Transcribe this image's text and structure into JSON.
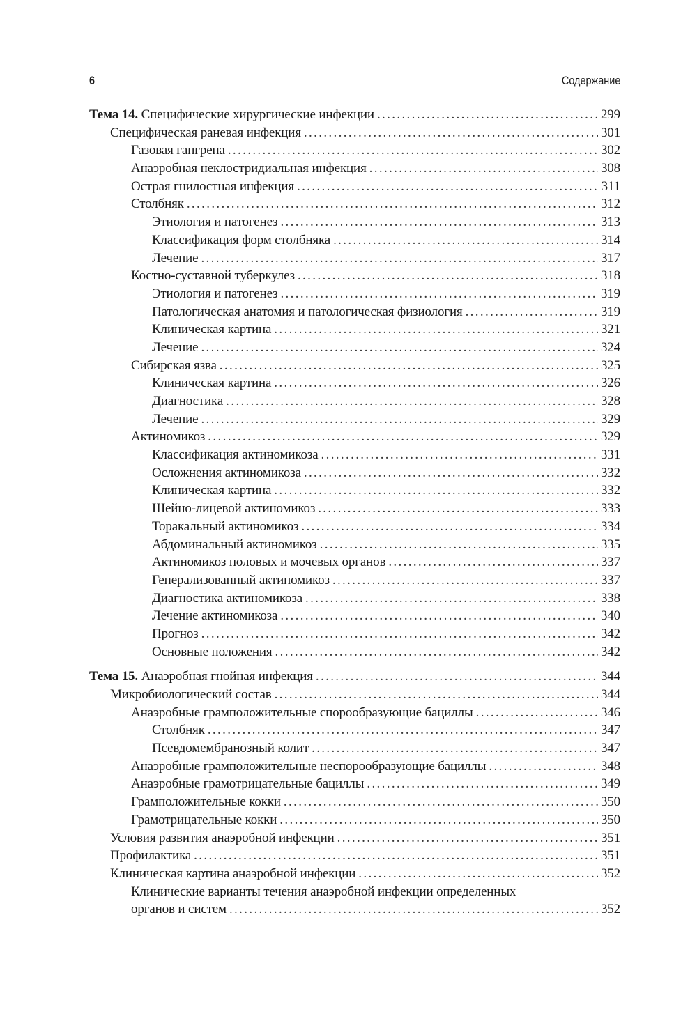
{
  "header": {
    "page_number": "6",
    "title": "Содержание"
  },
  "entries": [
    {
      "level": 0,
      "prefix": "Тема 14.",
      "label": "Специфические хирургические инфекции",
      "page": "299"
    },
    {
      "level": 1,
      "label": "Специфическая раневая инфекция",
      "page": "301"
    },
    {
      "level": 2,
      "label": "Газовая гангрена",
      "page": "302"
    },
    {
      "level": 2,
      "label": "Анаэробная неклостридиальная инфекция",
      "page": "308"
    },
    {
      "level": 2,
      "label": "Острая гнилостная инфекция",
      "page": "311"
    },
    {
      "level": 2,
      "label": "Столбняк",
      "page": "312"
    },
    {
      "level": 3,
      "label": "Этиология и патогенез",
      "page": "313"
    },
    {
      "level": 3,
      "label": "Классификация форм столбняка",
      "page": "314"
    },
    {
      "level": 3,
      "label": "Лечение",
      "page": "317"
    },
    {
      "level": 2,
      "label": "Костно-суставной туберкулез",
      "page": "318"
    },
    {
      "level": 3,
      "label": "Этиология и патогенез",
      "page": "319"
    },
    {
      "level": 3,
      "label": "Патологическая анатомия и патологическая физиология",
      "page": "319"
    },
    {
      "level": 3,
      "label": "Клиническая картина",
      "page": "321"
    },
    {
      "level": 3,
      "label": "Лечение",
      "page": "324"
    },
    {
      "level": 2,
      "label": "Сибирская язва",
      "page": "325"
    },
    {
      "level": 3,
      "label": "Клиническая картина",
      "page": "326"
    },
    {
      "level": 3,
      "label": "Диагностика",
      "page": "328"
    },
    {
      "level": 3,
      "label": "Лечение",
      "page": "329"
    },
    {
      "level": 2,
      "label": "Актиномикоз",
      "page": "329"
    },
    {
      "level": 3,
      "label": "Классификация актиномикоза",
      "page": "331"
    },
    {
      "level": 3,
      "label": "Осложнения актиномикоза",
      "page": "332"
    },
    {
      "level": 3,
      "label": "Клиническая картина",
      "page": "332"
    },
    {
      "level": 3,
      "label": "Шейно-лицевой актиномикоз",
      "page": "333"
    },
    {
      "level": 3,
      "label": "Торакальный актиномикоз",
      "page": "334"
    },
    {
      "level": 3,
      "label": "Абдоминальный актиномикоз",
      "page": "335"
    },
    {
      "level": 3,
      "label": "Актиномикоз половых и мочевых органов",
      "page": "337"
    },
    {
      "level": 3,
      "label": "Генерализованный актиномикоз",
      "page": "337"
    },
    {
      "level": 3,
      "label": "Диагностика актиномикоза",
      "page": "338"
    },
    {
      "level": 3,
      "label": "Лечение актиномикоза",
      "page": "340"
    },
    {
      "level": 3,
      "label": "Прогноз",
      "page": "342"
    },
    {
      "level": 3,
      "label": "Основные положения",
      "page": "342"
    },
    {
      "level": 0,
      "prefix": "Тема 15.",
      "label": "Анаэробная гнойная инфекция",
      "page": "344"
    },
    {
      "level": 1,
      "label": "Микробиологический состав",
      "page": "344"
    },
    {
      "level": 2,
      "label": "Анаэробные грамположительные спорообразующие бациллы",
      "page": "346"
    },
    {
      "level": 3,
      "label": "Столбняк",
      "page": "347"
    },
    {
      "level": 3,
      "label": "Псевдомембранозный колит",
      "page": "347"
    },
    {
      "level": 2,
      "label": "Анаэробные грамположительные неспорообразующие бациллы",
      "page": "348"
    },
    {
      "level": 2,
      "label": "Анаэробные грамотрицательные бациллы",
      "page": "349"
    },
    {
      "level": 2,
      "label": "Грамположительные кокки",
      "page": "350"
    },
    {
      "level": 2,
      "label": "Грамотрицательные кокки",
      "page": "350"
    },
    {
      "level": 1,
      "label": "Условия развития анаэробной инфекции",
      "page": "351"
    },
    {
      "level": 1,
      "label": "Профилактика",
      "page": "351"
    },
    {
      "level": 1,
      "label": "Клиническая картина анаэробной инфекции",
      "page": "352"
    },
    {
      "level": 2,
      "label": "Клинические варианты течения анаэробной инфекции определенных",
      "label_cont": "органов и систем",
      "page": "352"
    }
  ]
}
